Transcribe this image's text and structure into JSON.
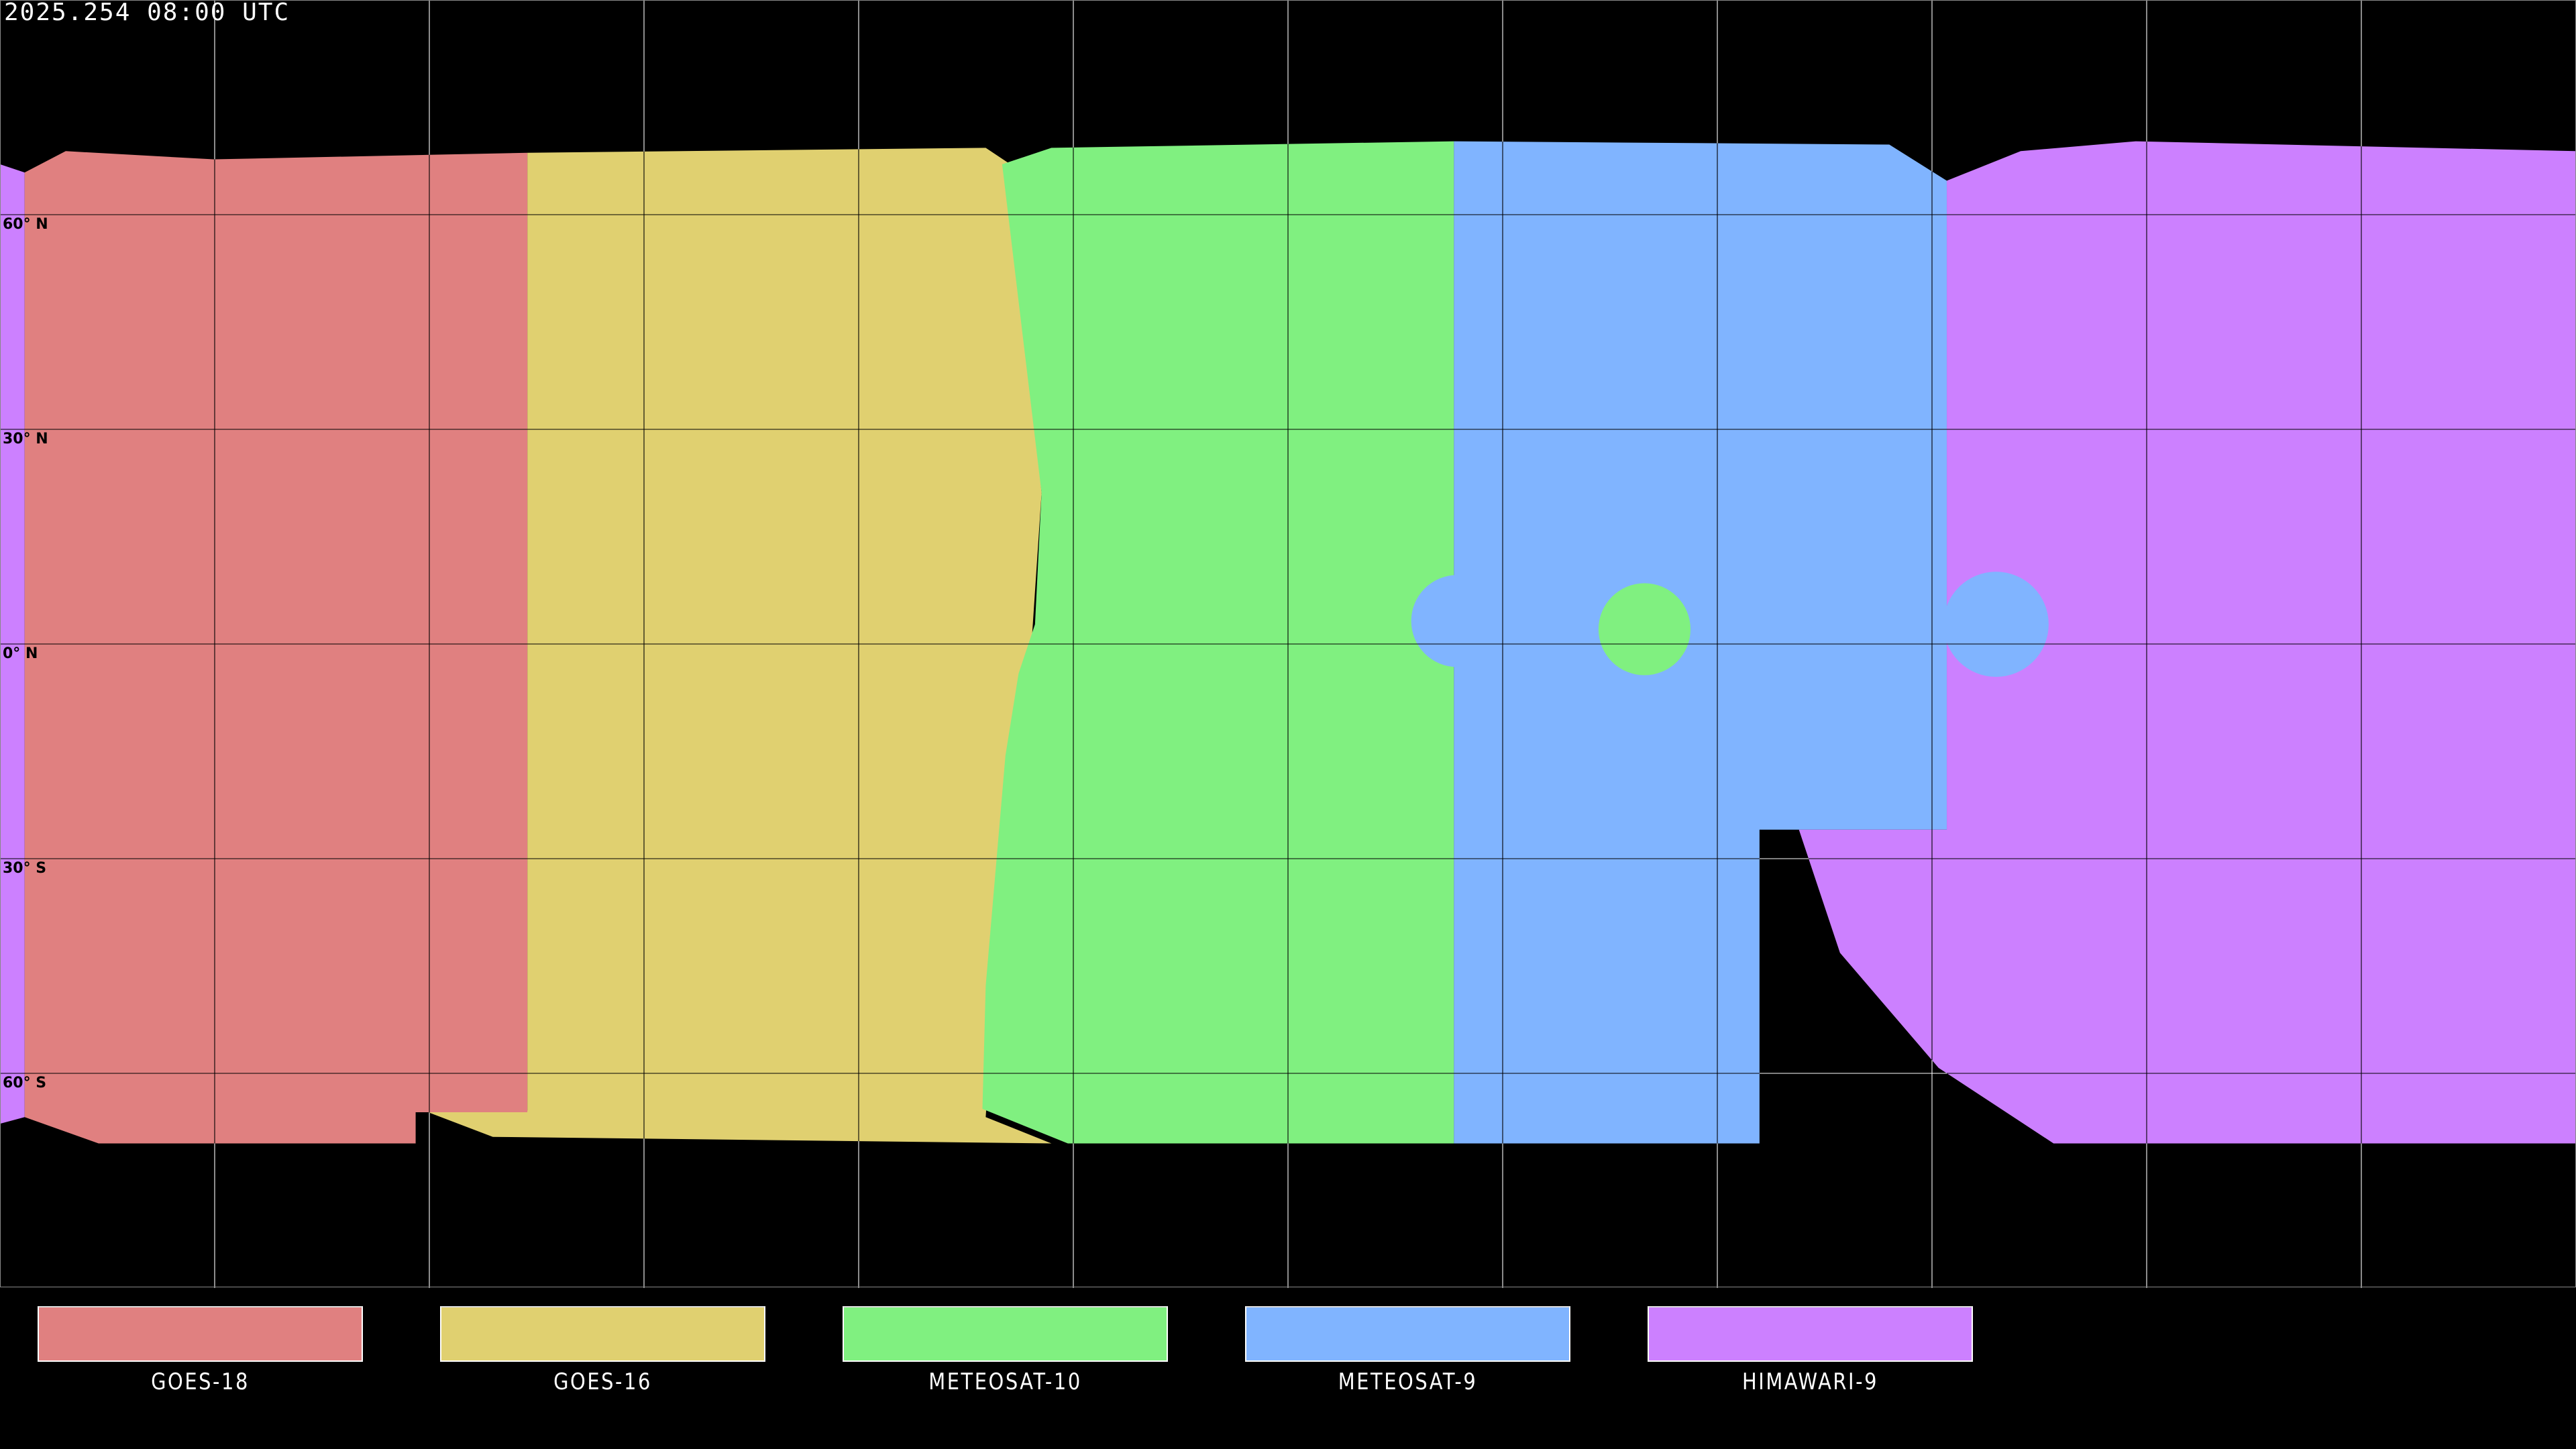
{
  "title": "2025.254 08:00 UTC",
  "lat_labels": [
    "60° N",
    "30° N",
    "0° N",
    "30° S",
    "60° S"
  ],
  "legend": [
    {
      "label": "GOES-18",
      "color": "#E08080"
    },
    {
      "label": "GOES-16",
      "color": "#E0D070"
    },
    {
      "label": "METEOSAT-10",
      "color": "#80F080"
    },
    {
      "label": "METEOSAT-9",
      "color": "#80B4FF"
    },
    {
      "label": "HIMAWARI-9",
      "color": "#CC80FF"
    }
  ],
  "projection": "equirectangular",
  "graticule_step_deg": 30,
  "background": "#000000"
}
